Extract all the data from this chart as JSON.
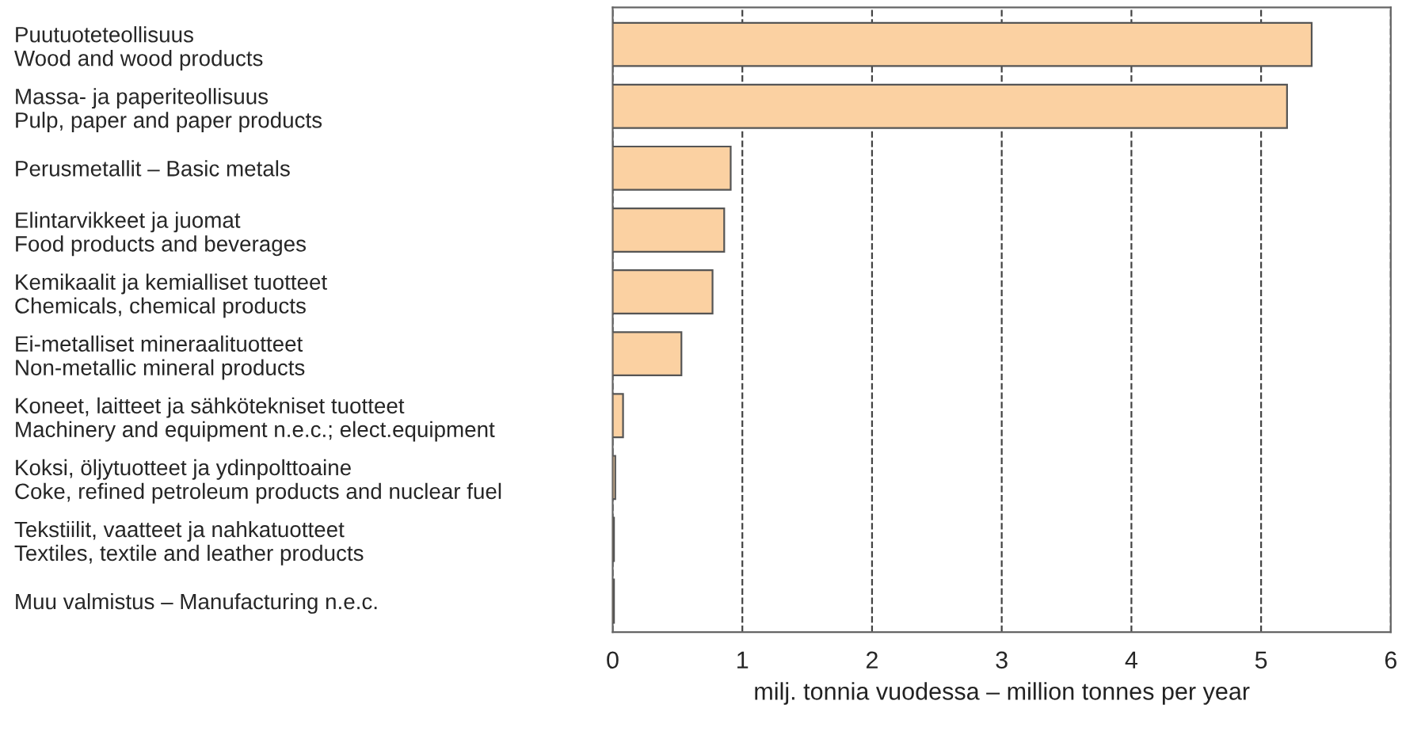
{
  "chart_data": {
    "type": "bar",
    "orientation": "horizontal",
    "xlabel": "milj. tonnia vuodessa – million tonnes per year",
    "categories": [
      "Puutuoteteollisuus\nWood and wood products",
      "Massa- ja paperiteollisuus\nPulp, paper and paper products",
      "Perusmetallit – Basic metals",
      "Elintarvikkeet ja juomat\nFood products and beverages",
      "Kemikaalit ja kemialliset tuotteet\nChemicals, chemical products",
      "Ei-metalliset mineraalituotteet\nNon-metallic mineral products",
      "Koneet, laitteet ja sähkötekniset tuotteet\nMachinery and equipment n.e.c.; elect.equipment",
      "Koksi, öljytuotteet ja ydinpolttoaine\nCoke, refined petroleum products and nuclear fuel",
      "Tekstiilit, vaatteet ja nahkatuotteet\nTextiles, textile and leather products",
      "Muu valmistus – Manufacturing n.e.c."
    ],
    "values": [
      5.39,
      5.2,
      0.91,
      0.86,
      0.77,
      0.53,
      0.08,
      0.02,
      0.01,
      0.01
    ],
    "color": "#fbd1a2",
    "xlim": [
      0,
      6
    ],
    "xticks": [
      0,
      1,
      2,
      3,
      4,
      5,
      6
    ],
    "grid": "x",
    "line_style": "dashed"
  }
}
